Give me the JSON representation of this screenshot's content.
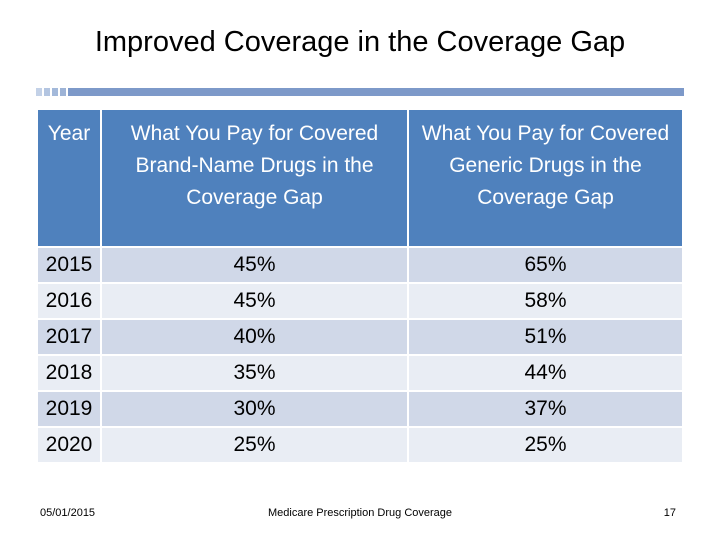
{
  "title": "Improved Coverage in the Coverage Gap",
  "table": {
    "headers": [
      "Year",
      "What You Pay for Covered Brand-Name Drugs in the Coverage Gap",
      "What You Pay for Covered Generic Drugs in the Coverage Gap"
    ],
    "rows": [
      {
        "year": "2015",
        "brand": "45%",
        "generic": "65%"
      },
      {
        "year": "2016",
        "brand": "45%",
        "generic": "58%"
      },
      {
        "year": "2017",
        "brand": "40%",
        "generic": "51%"
      },
      {
        "year": "2018",
        "brand": "35%",
        "generic": "44%"
      },
      {
        "year": "2019",
        "brand": "30%",
        "generic": "37%"
      },
      {
        "year": "2020",
        "brand": "25%",
        "generic": "25%"
      }
    ]
  },
  "footer": {
    "date": "05/01/2015",
    "center": "Medicare Prescription Drug Coverage",
    "page": "17"
  },
  "colors": {
    "header_bg": "#4f81bd",
    "row_odd": "#d0d8e8",
    "row_even": "#e9edf4"
  }
}
